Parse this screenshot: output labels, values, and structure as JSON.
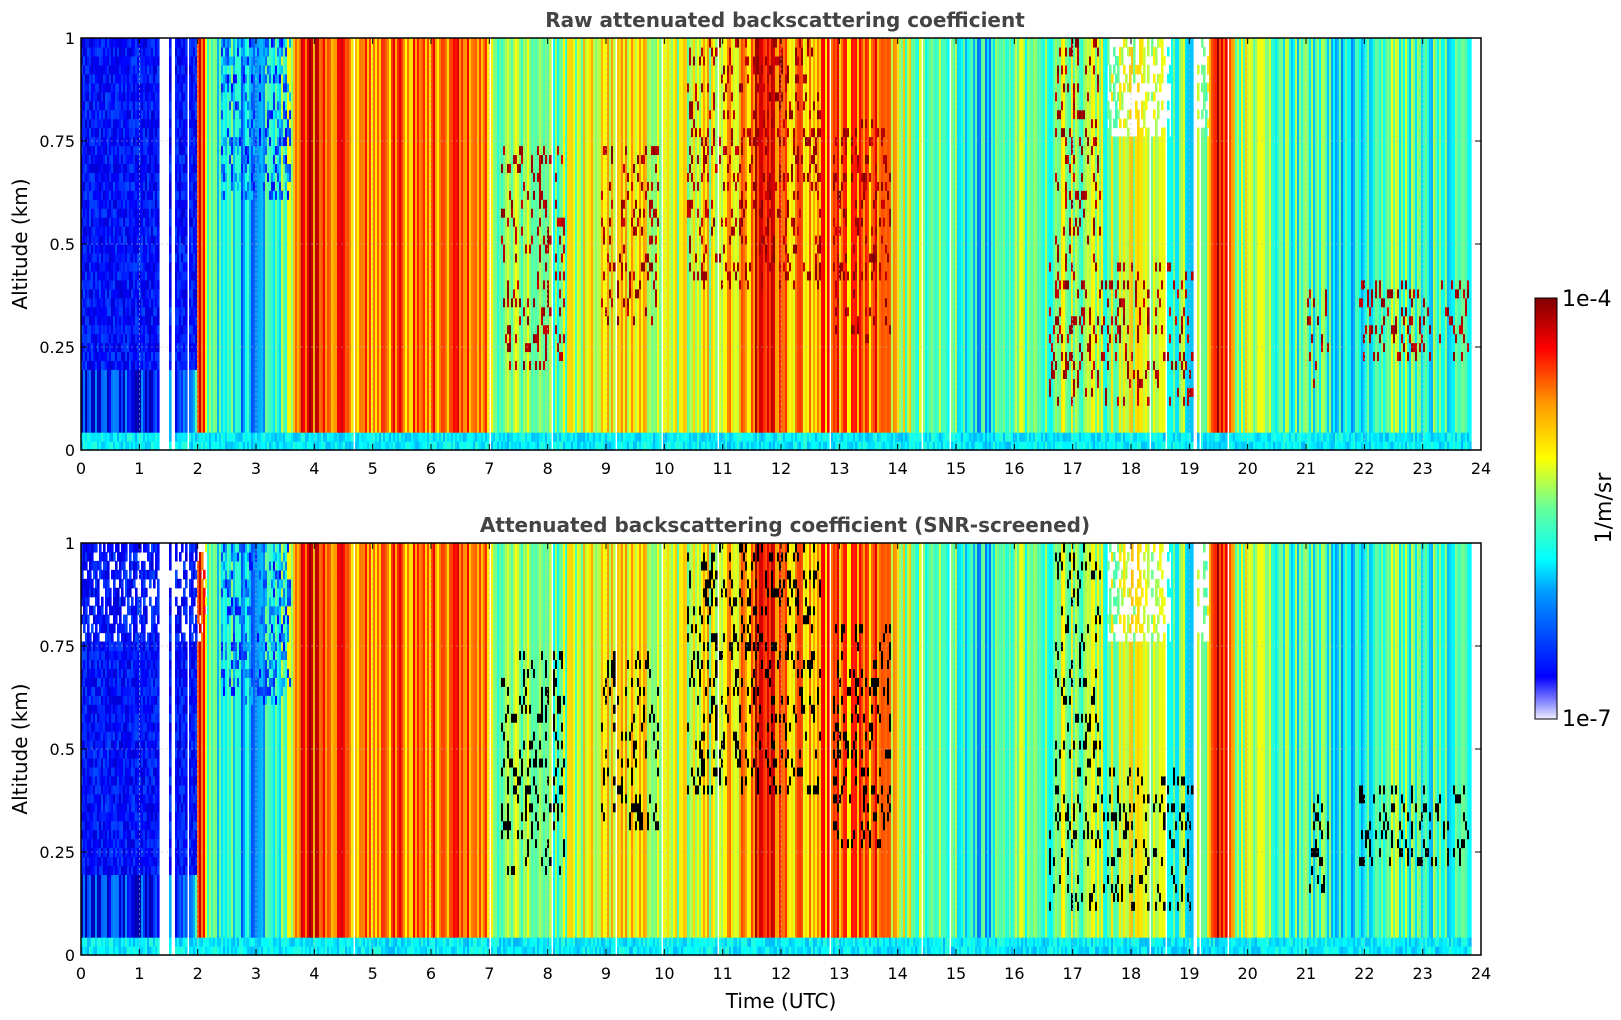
{
  "chart_data": [
    {
      "type": "heatmap",
      "title": "Raw attenuated backscattering coefficient",
      "xlabel": "",
      "ylabel": "Altitude (km)",
      "xlim": [
        0,
        24
      ],
      "ylim": [
        0,
        1
      ],
      "x_ticks": [
        "0",
        "1",
        "2",
        "3",
        "4",
        "5",
        "6",
        "7",
        "8",
        "9",
        "10",
        "11",
        "12",
        "13",
        "14",
        "15",
        "16",
        "17",
        "18",
        "19",
        "20",
        "21",
        "22",
        "23",
        "24"
      ],
      "y_ticks": [
        "0",
        "0.25",
        "0.5",
        "0.75",
        "1"
      ],
      "grid": true,
      "screened": false
    },
    {
      "type": "heatmap",
      "title": "Attenuated backscattering coefficient (SNR-screened)",
      "xlabel": "Time (UTC)",
      "ylabel": "Altitude (km)",
      "xlim": [
        0,
        24
      ],
      "ylim": [
        0,
        1
      ],
      "x_ticks": [
        "0",
        "1",
        "2",
        "3",
        "4",
        "5",
        "6",
        "7",
        "8",
        "9",
        "10",
        "11",
        "12",
        "13",
        "14",
        "15",
        "16",
        "17",
        "18",
        "19",
        "20",
        "21",
        "22",
        "23",
        "24"
      ],
      "y_ticks": [
        "0",
        "0.25",
        "0.5",
        "0.75",
        "1"
      ],
      "grid": true,
      "screened": true
    }
  ],
  "colorbar": {
    "label": "1/m/sr",
    "max_label": "1e-4",
    "min_label": "1e-7",
    "scale": "log",
    "colormap": "jet"
  },
  "profile_intensity": {
    "hours": [
      0,
      0.5,
      1,
      1.5,
      1.9,
      2.05,
      2.2,
      2.5,
      2.9,
      3.2,
      3.6,
      3.75,
      4.0,
      4.5,
      5,
      6,
      6.5,
      6.9,
      7.2,
      7.6,
      8,
      8.5,
      9,
      9.5,
      10,
      10.5,
      11,
      11.4,
      11.65,
      11.9,
      12.4,
      12.8,
      13.2,
      13.8,
      14.05,
      14.5,
      15,
      15.5,
      16,
      16.5,
      17,
      17.5,
      18,
      18.5,
      19,
      19.3,
      19.5,
      19.8,
      20.5,
      21,
      21.5,
      22,
      22.5,
      23,
      23.5,
      23.8
    ],
    "level": [
      0.12,
      0.12,
      0.14,
      0.16,
      0.25,
      0.92,
      0.45,
      0.42,
      0.3,
      0.38,
      0.55,
      0.85,
      0.84,
      0.78,
      0.76,
      0.76,
      0.8,
      0.74,
      0.5,
      0.55,
      0.48,
      0.55,
      0.62,
      0.62,
      0.55,
      0.58,
      0.62,
      0.7,
      0.97,
      0.8,
      0.7,
      0.78,
      0.76,
      0.78,
      0.55,
      0.52,
      0.42,
      0.35,
      0.48,
      0.48,
      0.58,
      0.5,
      0.55,
      0.5,
      0.45,
      0.5,
      0.95,
      0.55,
      0.48,
      0.42,
      0.4,
      0.38,
      0.48,
      0.45,
      0.4,
      0.42
    ]
  }
}
